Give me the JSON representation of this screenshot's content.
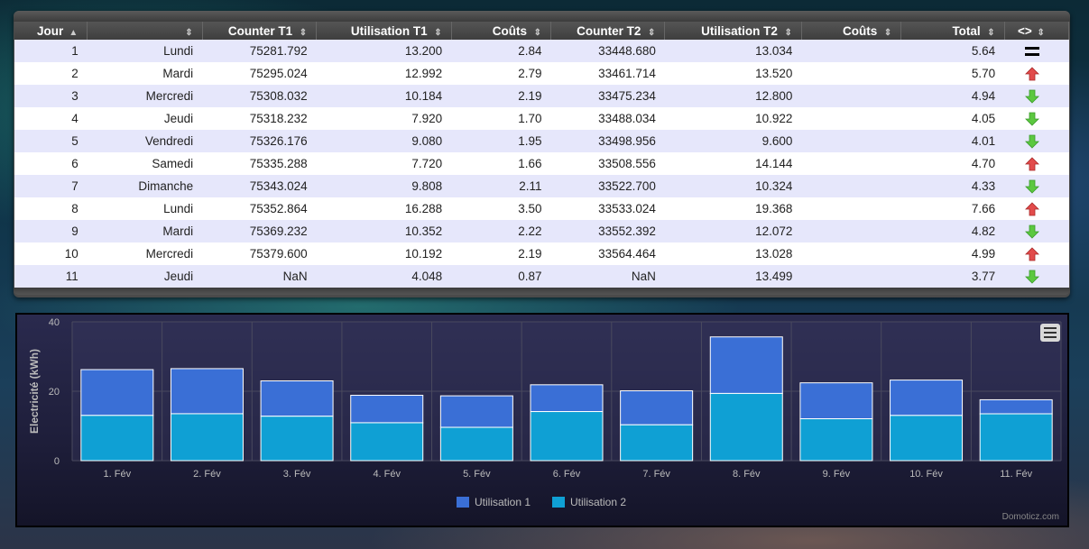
{
  "table": {
    "headers": [
      "Jour",
      "",
      "Counter T1",
      "Utilisation T1",
      "Coûts",
      "Counter T2",
      "Utilisation T2",
      "Coûts",
      "Total",
      "<>"
    ],
    "rows": [
      {
        "jour": "1",
        "day": "Lundi",
        "ct1": "75281.792",
        "ut1": "13.200",
        "cout1": "2.84",
        "ct2": "33448.680",
        "ut2": "13.034",
        "cout2": "",
        "total": "5.64",
        "trend": "equal"
      },
      {
        "jour": "2",
        "day": "Mardi",
        "ct1": "75295.024",
        "ut1": "12.992",
        "cout1": "2.79",
        "ct2": "33461.714",
        "ut2": "13.520",
        "cout2": "",
        "total": "5.70",
        "trend": "up"
      },
      {
        "jour": "3",
        "day": "Mercredi",
        "ct1": "75308.032",
        "ut1": "10.184",
        "cout1": "2.19",
        "ct2": "33475.234",
        "ut2": "12.800",
        "cout2": "",
        "total": "4.94",
        "trend": "down"
      },
      {
        "jour": "4",
        "day": "Jeudi",
        "ct1": "75318.232",
        "ut1": "7.920",
        "cout1": "1.70",
        "ct2": "33488.034",
        "ut2": "10.922",
        "cout2": "",
        "total": "4.05",
        "trend": "down"
      },
      {
        "jour": "5",
        "day": "Vendredi",
        "ct1": "75326.176",
        "ut1": "9.080",
        "cout1": "1.95",
        "ct2": "33498.956",
        "ut2": "9.600",
        "cout2": "",
        "total": "4.01",
        "trend": "down"
      },
      {
        "jour": "6",
        "day": "Samedi",
        "ct1": "75335.288",
        "ut1": "7.720",
        "cout1": "1.66",
        "ct2": "33508.556",
        "ut2": "14.144",
        "cout2": "",
        "total": "4.70",
        "trend": "up"
      },
      {
        "jour": "7",
        "day": "Dimanche",
        "ct1": "75343.024",
        "ut1": "9.808",
        "cout1": "2.11",
        "ct2": "33522.700",
        "ut2": "10.324",
        "cout2": "",
        "total": "4.33",
        "trend": "down"
      },
      {
        "jour": "8",
        "day": "Lundi",
        "ct1": "75352.864",
        "ut1": "16.288",
        "cout1": "3.50",
        "ct2": "33533.024",
        "ut2": "19.368",
        "cout2": "",
        "total": "7.66",
        "trend": "up"
      },
      {
        "jour": "9",
        "day": "Mardi",
        "ct1": "75369.232",
        "ut1": "10.352",
        "cout1": "2.22",
        "ct2": "33552.392",
        "ut2": "12.072",
        "cout2": "",
        "total": "4.82",
        "trend": "down"
      },
      {
        "jour": "10",
        "day": "Mercredi",
        "ct1": "75379.600",
        "ut1": "10.192",
        "cout1": "2.19",
        "ct2": "33564.464",
        "ut2": "13.028",
        "cout2": "",
        "total": "4.99",
        "trend": "up"
      },
      {
        "jour": "11",
        "day": "Jeudi",
        "ct1": "NaN",
        "ut1": "4.048",
        "cout1": "0.87",
        "ct2": "NaN",
        "ut2": "13.499",
        "cout2": "",
        "total": "3.77",
        "trend": "down"
      }
    ]
  },
  "colors": {
    "series1": "#3a6fd6",
    "series2": "#0fa0d4",
    "trend_up": "#e24b4b",
    "trend_down": "#5cc840"
  },
  "chart_data": {
    "type": "bar",
    "stacked": true,
    "title": "",
    "xlabel": "",
    "ylabel": "Electricité (kWh)",
    "ylim": [
      0,
      40
    ],
    "yticks": [
      "0",
      "20",
      "40"
    ],
    "categories": [
      "1. Fév",
      "2. Fév",
      "3. Fév",
      "4. Fév",
      "5. Fév",
      "6. Fév",
      "7. Fév",
      "8. Fév",
      "9. Fév",
      "10. Fév",
      "11. Fév"
    ],
    "series": [
      {
        "name": "Utilisation 1",
        "values": [
          13.2,
          12.992,
          10.184,
          7.92,
          9.08,
          7.72,
          9.808,
          16.288,
          10.352,
          10.192,
          4.048
        ]
      },
      {
        "name": "Utilisation 2",
        "values": [
          13.034,
          13.52,
          12.8,
          10.922,
          9.6,
          14.144,
          10.324,
          19.368,
          12.072,
          13.028,
          13.499
        ]
      }
    ],
    "legend": "bottom-center",
    "grid": true
  },
  "chart": {
    "credit": "Domoticz.com",
    "menu_icon": "menu-icon"
  }
}
